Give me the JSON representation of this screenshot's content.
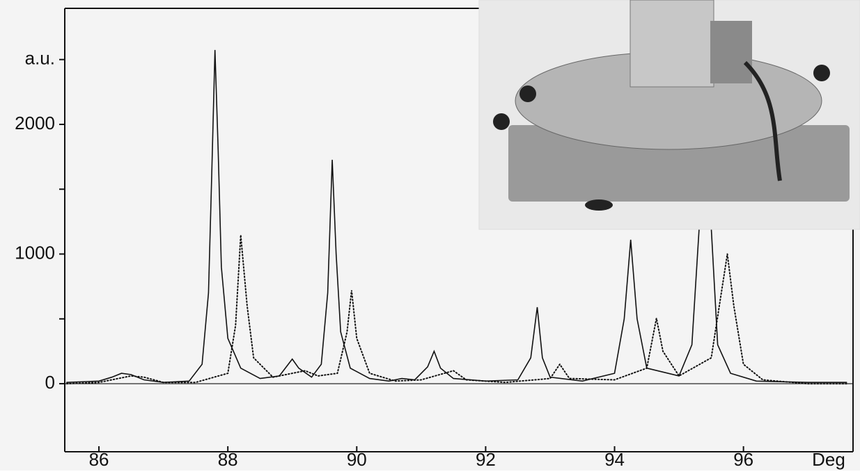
{
  "chart_data": {
    "type": "line",
    "xlabel": "Deg",
    "xlim": [
      85.47,
      97.7
    ],
    "xticks": [
      86,
      88,
      90,
      92,
      94,
      96
    ],
    "ylim": [
      -525,
      2895
    ],
    "yticks": [
      0,
      1000,
      2000,
      {
        "value": 2500,
        "label": "a.u."
      }
    ],
    "yminor_ticks": [
      500,
      1500
    ],
    "zero_line": true,
    "series": [
      {
        "color": "#111111",
        "style": "solid",
        "x": [
          85.5,
          86.0,
          86.2,
          86.35,
          86.5,
          86.7,
          87.0,
          87.4,
          87.6,
          87.7,
          87.75,
          87.8,
          87.85,
          87.9,
          88.0,
          88.2,
          88.5,
          88.8,
          89.0,
          89.1,
          89.3,
          89.45,
          89.55,
          89.62,
          89.68,
          89.75,
          89.9,
          90.2,
          90.5,
          90.7,
          90.9,
          91.1,
          91.2,
          91.3,
          91.5,
          92.0,
          92.5,
          92.7,
          92.8,
          92.88,
          93.0,
          93.5,
          94.0,
          94.15,
          94.25,
          94.35,
          94.5,
          95.0,
          95.2,
          95.35,
          95.42,
          95.5,
          95.6,
          95.8,
          96.2,
          97.0,
          97.6
        ],
        "values": [
          10,
          20,
          50,
          80,
          70,
          30,
          10,
          20,
          150,
          700,
          1600,
          2574,
          1800,
          900,
          350,
          120,
          40,
          60,
          190,
          120,
          50,
          150,
          700,
          1727,
          1000,
          400,
          120,
          40,
          20,
          40,
          30,
          130,
          250,
          120,
          40,
          20,
          30,
          200,
          590,
          200,
          50,
          20,
          80,
          500,
          1110,
          500,
          120,
          60,
          300,
          1500,
          2300,
          1200,
          300,
          80,
          20,
          10,
          10
        ]
      },
      {
        "color": "#111111",
        "style": "dotted",
        "x": [
          85.5,
          86.0,
          86.3,
          86.5,
          86.7,
          87.0,
          87.5,
          88.0,
          88.12,
          88.2,
          88.3,
          88.4,
          88.7,
          89.2,
          89.4,
          89.7,
          89.85,
          89.92,
          90.0,
          90.2,
          90.6,
          91.0,
          91.5,
          91.7,
          92.3,
          93.0,
          93.15,
          93.3,
          94.0,
          94.5,
          94.65,
          94.75,
          95.0,
          95.5,
          95.75,
          95.85,
          96.0,
          96.3,
          97.0,
          97.6
        ],
        "values": [
          0,
          10,
          40,
          60,
          50,
          10,
          10,
          80,
          450,
          1147,
          600,
          200,
          50,
          100,
          60,
          80,
          400,
          720,
          350,
          80,
          20,
          30,
          100,
          30,
          10,
          40,
          150,
          40,
          30,
          120,
          505,
          250,
          60,
          200,
          1000,
          600,
          150,
          30,
          0,
          0
        ]
      }
    ]
  }
}
